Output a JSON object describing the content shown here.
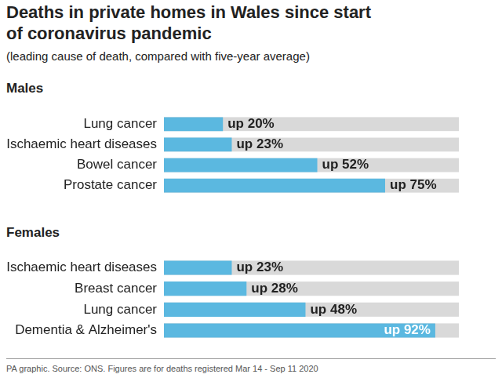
{
  "title": "Deaths in private homes in Wales since start of coronavirus pandemic",
  "subtitle": "(leading cause of death, compared with five-year average)",
  "note": "PA graphic. Source: ONS. Figures are for deaths registered Mar 14 - Sep 11 2020",
  "chart_data": [
    {
      "type": "bar",
      "title": "Males",
      "orientation": "horizontal",
      "categories": [
        "Lung cancer",
        "Ischaemic heart diseases",
        "Bowel cancer",
        "Prostate cancer"
      ],
      "values": [
        20,
        23,
        52,
        75
      ],
      "value_labels": [
        "up 20%",
        "up 23%",
        "up 52%",
        "up 75%"
      ],
      "color": "#5bb8e0",
      "xlim": [
        0,
        100
      ],
      "grid": false,
      "data_labels": true,
      "tick_labels": "y"
    },
    {
      "type": "bar",
      "title": "Females",
      "orientation": "horizontal",
      "categories": [
        "Ischaemic heart diseases",
        "Breast cancer",
        "Lung cancer",
        "Dementia & Alzheimer's"
      ],
      "values": [
        23,
        28,
        48,
        92
      ],
      "value_labels": [
        "up 23%",
        "up 28%",
        "up 48%",
        "up 92%"
      ],
      "color": "#5bb8e0",
      "xlim": [
        0,
        100
      ],
      "grid": false,
      "data_labels": true,
      "tick_labels": "y"
    }
  ]
}
